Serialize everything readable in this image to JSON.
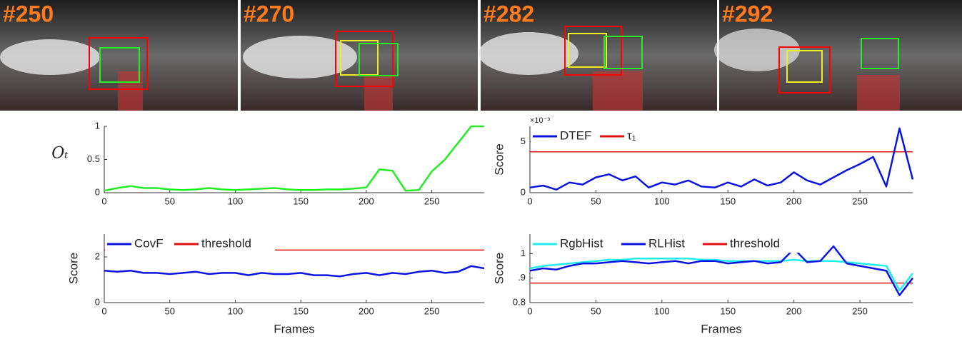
{
  "frames": [
    {
      "label": "#250"
    },
    {
      "label": "#270"
    },
    {
      "label": "#282"
    },
    {
      "label": "#292"
    }
  ],
  "chart_data": [
    {
      "type": "line",
      "ylabel": "Oₜ",
      "ylabel_rotated": false,
      "x": [
        0,
        10,
        20,
        30,
        40,
        50,
        60,
        70,
        80,
        90,
        100,
        110,
        120,
        130,
        140,
        150,
        160,
        170,
        180,
        190,
        200,
        210,
        220,
        230,
        240,
        250,
        260,
        270,
        280,
        290
      ],
      "series": [
        {
          "name": "Oₜ",
          "color": "#22ee22",
          "values": [
            0.03,
            0.07,
            0.1,
            0.07,
            0.07,
            0.05,
            0.04,
            0.05,
            0.07,
            0.05,
            0.04,
            0.05,
            0.06,
            0.07,
            0.05,
            0.04,
            0.04,
            0.05,
            0.05,
            0.06,
            0.08,
            0.35,
            0.33,
            0.03,
            0.04,
            0.32,
            0.5,
            0.75,
            1,
            1
          ]
        }
      ],
      "xlim": [
        0,
        290
      ],
      "xticks": [
        0,
        50,
        100,
        150,
        200,
        250
      ],
      "ylim": [
        0,
        1
      ],
      "yticks": [
        0,
        0.5,
        1
      ]
    },
    {
      "type": "line",
      "ylabel": "Score",
      "ylabel_rotated": true,
      "scale_note": "×10⁻³",
      "x": [
        0,
        10,
        20,
        30,
        40,
        50,
        60,
        70,
        80,
        90,
        100,
        110,
        120,
        130,
        140,
        150,
        160,
        170,
        180,
        190,
        200,
        210,
        220,
        230,
        240,
        250,
        260,
        270,
        280,
        290
      ],
      "series": [
        {
          "name": "DTEF",
          "color": "#0a14e0",
          "values": [
            0.5,
            0.7,
            0.3,
            1,
            0.8,
            1.5,
            1.8,
            1.2,
            1.6,
            0.5,
            1,
            0.8,
            1.2,
            0.6,
            0.5,
            1,
            0.6,
            1.3,
            0.7,
            1,
            2,
            1.2,
            0.8,
            1.5,
            2.2,
            2.8,
            3.5,
            0.6,
            6.3,
            1.3
          ]
        }
      ],
      "hlines": [
        {
          "name": "τ₁",
          "color": "#e01010",
          "value": 4
        }
      ],
      "xlim": [
        0,
        290
      ],
      "xticks": [
        0,
        50,
        100,
        150,
        200,
        250
      ],
      "ylim": [
        0,
        6.5
      ],
      "yticks": [
        0,
        5
      ]
    },
    {
      "type": "line",
      "ylabel": "Score",
      "ylabel_rotated": true,
      "xlabel": "Frames",
      "x": [
        0,
        10,
        20,
        30,
        40,
        50,
        60,
        70,
        80,
        90,
        100,
        110,
        120,
        130,
        140,
        150,
        160,
        170,
        180,
        190,
        200,
        210,
        220,
        230,
        240,
        250,
        260,
        270,
        280,
        290
      ],
      "series": [
        {
          "name": "CovF",
          "color": "#0a14e0",
          "values": [
            1.4,
            1.35,
            1.4,
            1.3,
            1.3,
            1.25,
            1.3,
            1.35,
            1.25,
            1.3,
            1.3,
            1.2,
            1.3,
            1.25,
            1.25,
            1.3,
            1.2,
            1.2,
            1.15,
            1.25,
            1.3,
            1.2,
            1.3,
            1.25,
            1.35,
            1.4,
            1.3,
            1.35,
            1.6,
            1.5
          ]
        }
      ],
      "hlines": [
        {
          "name": "threshold",
          "color": "#e01010",
          "value": 2.3
        }
      ],
      "xlim": [
        0,
        290
      ],
      "xticks": [
        0,
        50,
        100,
        150,
        200,
        250
      ],
      "ylim": [
        0,
        3
      ],
      "yticks": [
        0,
        2
      ]
    },
    {
      "type": "line",
      "ylabel": "Score",
      "ylabel_rotated": true,
      "xlabel": "Frames",
      "x": [
        0,
        10,
        20,
        30,
        40,
        50,
        60,
        70,
        80,
        90,
        100,
        110,
        120,
        130,
        140,
        150,
        160,
        170,
        180,
        190,
        200,
        210,
        220,
        230,
        240,
        250,
        260,
        270,
        280,
        290
      ],
      "series": [
        {
          "name": "RgbHist",
          "color": "#22eeee",
          "values": [
            0.94,
            0.95,
            0.955,
            0.96,
            0.965,
            0.97,
            0.975,
            0.975,
            0.98,
            0.98,
            0.98,
            0.98,
            0.98,
            0.975,
            0.975,
            0.97,
            0.97,
            0.97,
            0.97,
            0.97,
            0.975,
            0.97,
            0.97,
            0.97,
            0.965,
            0.96,
            0.955,
            0.95,
            0.85,
            0.92
          ]
        },
        {
          "name": "RLHist",
          "color": "#0a14e0",
          "values": [
            0.93,
            0.94,
            0.935,
            0.95,
            0.96,
            0.96,
            0.965,
            0.97,
            0.965,
            0.96,
            0.965,
            0.97,
            0.96,
            0.97,
            0.97,
            0.96,
            0.965,
            0.97,
            0.96,
            0.965,
            1.02,
            0.965,
            0.97,
            1.03,
            0.96,
            0.95,
            0.94,
            0.93,
            0.83,
            0.9
          ]
        }
      ],
      "hlines": [
        {
          "name": "threshold",
          "color": "#e01010",
          "value": 0.88
        }
      ],
      "xlim": [
        0,
        290
      ],
      "xticks": [
        0,
        50,
        100,
        150,
        200,
        250
      ],
      "ylim": [
        0.8,
        1.08
      ],
      "yticks": [
        {
          "value": 0.8,
          "label": "0.8"
        },
        {
          "value": 0.9,
          "label": ".9"
        },
        {
          "value": 1,
          "label": "1"
        }
      ]
    }
  ]
}
